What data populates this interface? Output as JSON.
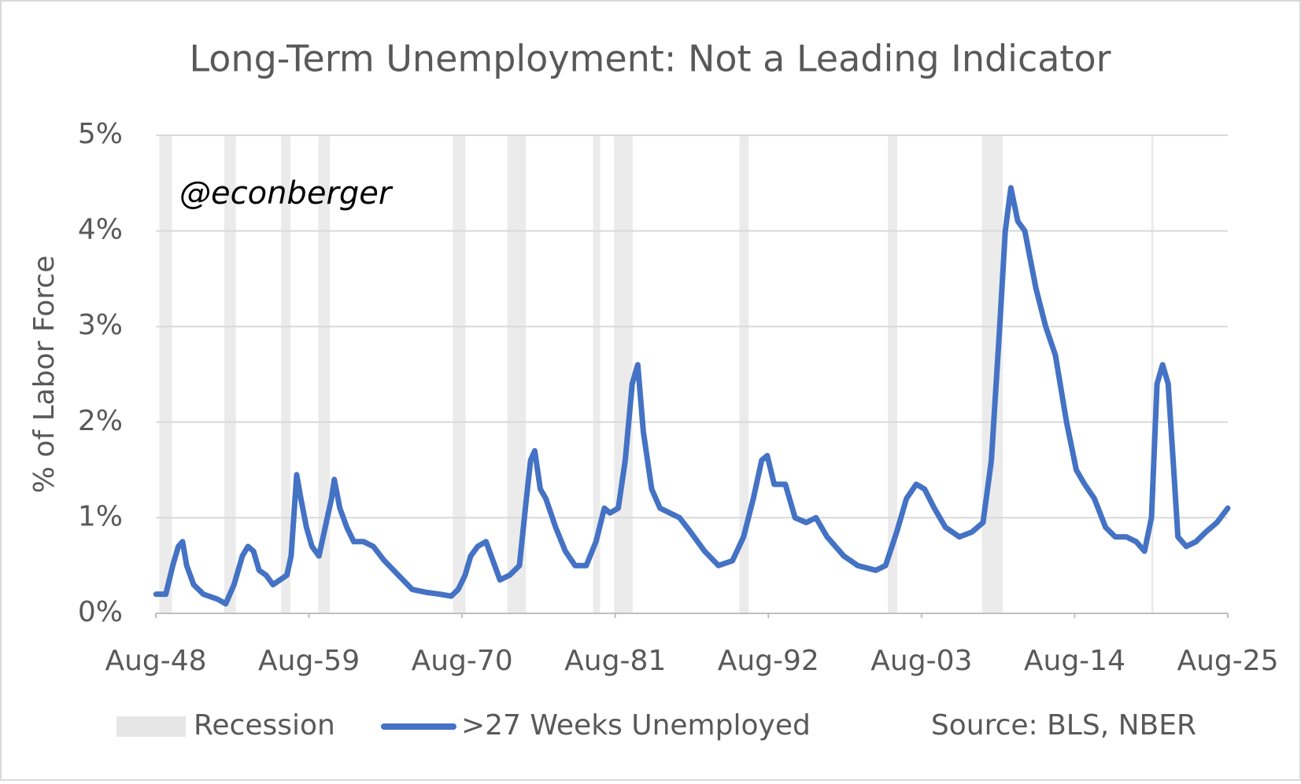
{
  "chart_data": {
    "type": "line",
    "title": "Long-Term Unemployment: Not a Leading Indicator",
    "y_label": "% of Labor Force",
    "annotation": "@econberger",
    "source": "Source: BLS, NBER",
    "xlim": [
      1948.583,
      2025.583
    ],
    "xticks": [
      {
        "value": 1948.583,
        "label": "Aug-48"
      },
      {
        "value": 1959.583,
        "label": "Aug-59"
      },
      {
        "value": 1970.583,
        "label": "Aug-70"
      },
      {
        "value": 1981.583,
        "label": "Aug-81"
      },
      {
        "value": 1992.583,
        "label": "Aug-92"
      },
      {
        "value": 2003.583,
        "label": "Aug-03"
      },
      {
        "value": 2014.583,
        "label": "Aug-14"
      },
      {
        "value": 2025.583,
        "label": "Aug-25"
      }
    ],
    "ylim": [
      0,
      5
    ],
    "yticks": [
      {
        "value": 0,
        "label": "0%"
      },
      {
        "value": 1,
        "label": "1%"
      },
      {
        "value": 2,
        "label": "2%"
      },
      {
        "value": 3,
        "label": "3%"
      },
      {
        "value": 4,
        "label": "4%"
      },
      {
        "value": 5,
        "label": "5%"
      }
    ],
    "grid": true,
    "recession": {
      "name": "Recession",
      "color": "#e6e6e6",
      "periods": [
        [
          1948.833,
          1949.75
        ],
        [
          1953.5,
          1954.333
        ],
        [
          1957.583,
          1958.25
        ],
        [
          1960.25,
          1961.083
        ],
        [
          1969.917,
          1970.833
        ],
        [
          1973.833,
          1975.167
        ],
        [
          1980.0,
          1980.5
        ],
        [
          1981.5,
          1982.833
        ],
        [
          1990.5,
          1991.167
        ],
        [
          2001.167,
          2001.833
        ],
        [
          2007.917,
          2009.417
        ],
        [
          2020.083,
          2020.25
        ]
      ]
    },
    "x": [
      1948.6,
      1949.3,
      1949.8,
      1950.2,
      1950.5,
      1950.8,
      1951.3,
      1952,
      1953,
      1953.6,
      1954.2,
      1954.8,
      1955.2,
      1955.6,
      1956,
      1956.5,
      1957,
      1957.5,
      1958,
      1958.3,
      1958.7,
      1959,
      1959.4,
      1959.8,
      1960.3,
      1960.6,
      1961.2,
      1961.4,
      1961.8,
      1962.3,
      1962.8,
      1963.5,
      1964.2,
      1965,
      1966,
      1967,
      1968,
      1969,
      1969.8,
      1970.3,
      1970.8,
      1971.2,
      1971.7,
      1972.3,
      1972.8,
      1973.3,
      1974,
      1974.7,
      1975.2,
      1975.5,
      1975.8,
      1976.2,
      1976.6,
      1977.3,
      1978,
      1978.7,
      1979.5,
      1980.2,
      1980.8,
      1981.2,
      1981.8,
      1982.3,
      1982.8,
      1983.2,
      1983.6,
      1984.2,
      1984.8,
      1985.5,
      1986.2,
      1987,
      1988,
      1989,
      1990,
      1990.8,
      1991.5,
      1992.1,
      1992.5,
      1993,
      1993.8,
      1994.5,
      1995.3,
      1996,
      1996.8,
      1998,
      1999,
      2000.3,
      2001,
      2001.8,
      2002.5,
      2003.2,
      2003.8,
      2004.5,
      2005.3,
      2006.3,
      2007.2,
      2008,
      2008.6,
      2009.2,
      2009.6,
      2010.0,
      2010.5,
      2011,
      2011.8,
      2012.5,
      2013.2,
      2014,
      2014.7,
      2015.3,
      2016,
      2016.8,
      2017.5,
      2018.3,
      2019,
      2019.6,
      2020.1,
      2020.5,
      2020.9,
      2021.3,
      2021.7,
      2022,
      2022.6,
      2023.3,
      2024,
      2024.8,
      2025.583
    ],
    "series": [
      {
        "name": ">27 Weeks Unemployed",
        "color": "#4472c4",
        "values": [
          0.2,
          0.2,
          0.5,
          0.7,
          0.75,
          0.5,
          0.3,
          0.2,
          0.15,
          0.1,
          0.3,
          0.6,
          0.7,
          0.65,
          0.45,
          0.4,
          0.3,
          0.35,
          0.4,
          0.6,
          1.45,
          1.2,
          0.9,
          0.7,
          0.6,
          0.8,
          1.2,
          1.4,
          1.1,
          0.9,
          0.75,
          0.75,
          0.7,
          0.55,
          0.4,
          0.25,
          0.22,
          0.2,
          0.18,
          0.25,
          0.4,
          0.6,
          0.7,
          0.75,
          0.55,
          0.35,
          0.4,
          0.5,
          1.2,
          1.6,
          1.7,
          1.3,
          1.2,
          0.9,
          0.65,
          0.5,
          0.5,
          0.75,
          1.1,
          1.05,
          1.1,
          1.6,
          2.4,
          2.6,
          1.9,
          1.3,
          1.1,
          1.05,
          1.0,
          0.85,
          0.65,
          0.5,
          0.55,
          0.8,
          1.2,
          1.6,
          1.65,
          1.35,
          1.35,
          1.0,
          0.95,
          1.0,
          0.8,
          0.6,
          0.5,
          0.45,
          0.5,
          0.85,
          1.2,
          1.35,
          1.3,
          1.1,
          0.9,
          0.8,
          0.85,
          0.95,
          1.6,
          3.0,
          4.0,
          4.45,
          4.1,
          4.0,
          3.4,
          3.0,
          2.7,
          2.0,
          1.5,
          1.35,
          1.2,
          0.9,
          0.8,
          0.8,
          0.75,
          0.65,
          1.0,
          2.4,
          2.6,
          2.4,
          1.5,
          0.8,
          0.7,
          0.75,
          0.85,
          0.95,
          1.1
        ]
      }
    ]
  }
}
